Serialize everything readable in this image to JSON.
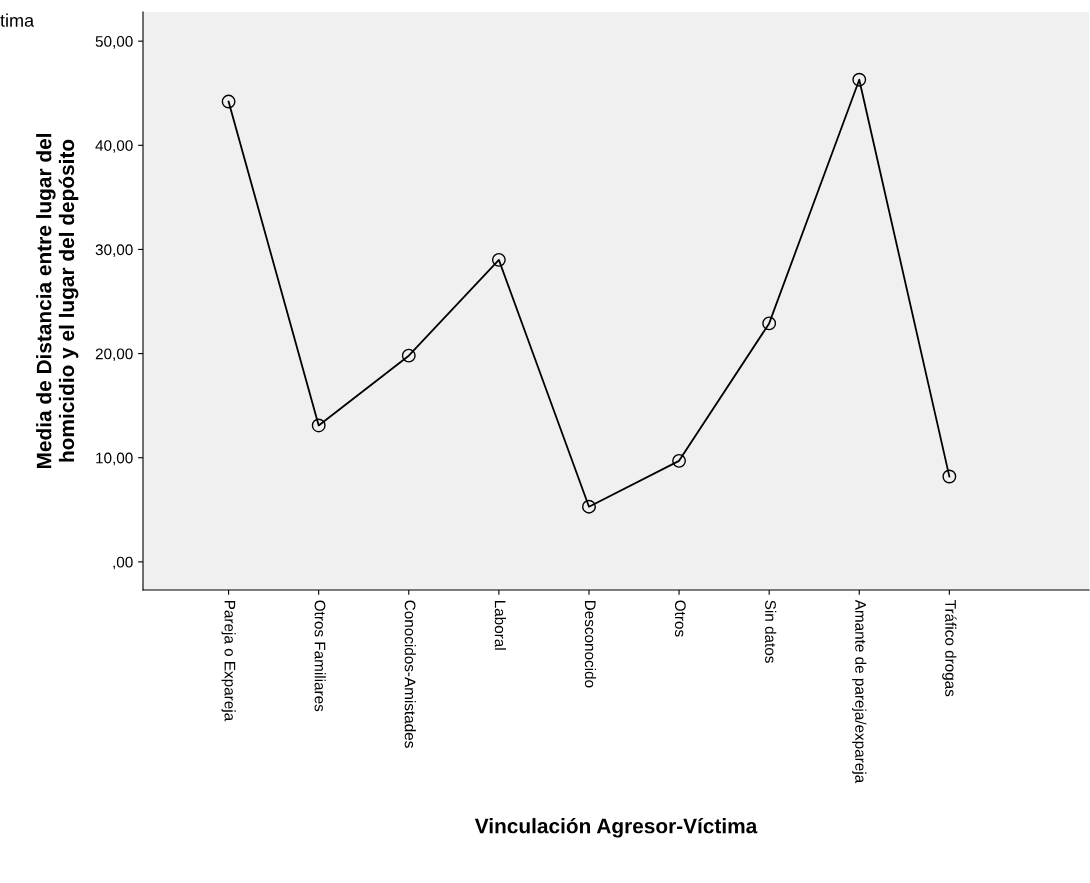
{
  "chart_data": {
    "type": "line",
    "xlabel": "Vinculación Agresor-Víctima",
    "ylabel": "Media de Distancia entre lugar del\nhomicidio y el lugar del depósito",
    "annotations": [
      "tima"
    ],
    "categories": [
      "Pareja o Expareja",
      "Otros Familiares",
      "Conocidos-Amistades",
      "Laboral",
      "Desconocido",
      "Otros",
      "Sin datos",
      "Amante de pareja/expareja",
      "Tráfico drogas"
    ],
    "series": [
      {
        "color": "#000000",
        "values": [
          44.2,
          13.1,
          19.8,
          29.0,
          5.3,
          9.7,
          22.9,
          46.3,
          8.2
        ]
      }
    ],
    "ylim": [
      -2.7,
      52.8
    ],
    "yticks": [
      {
        "value": 0,
        "label": ",00"
      },
      {
        "value": 10,
        "label": "10,00"
      },
      {
        "value": 20,
        "label": "20,00"
      },
      {
        "value": 30,
        "label": "30,00"
      },
      {
        "value": 40,
        "label": "40,00"
      },
      {
        "value": 50,
        "label": "50,00"
      }
    ],
    "grid": false,
    "legend": false,
    "marker": "circle",
    "line_style": "solid"
  }
}
